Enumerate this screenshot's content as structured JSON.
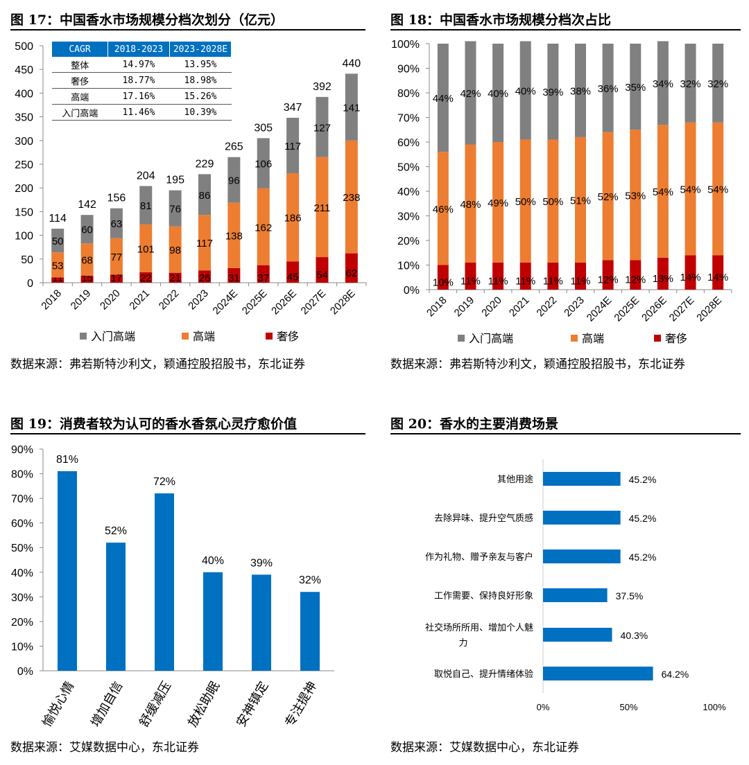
{
  "fig17": {
    "title": "图 17：中国香水市场规模分档次划分（亿元）",
    "source": "数据来源：弗若斯特沙利文，颖通控股招股书，东北证券",
    "table": {
      "headers": [
        "CAGR",
        "2018-2023",
        "2023-2028E"
      ],
      "rows": [
        [
          "整体",
          "14.97%",
          "13.95%"
        ],
        [
          "奢侈",
          "18.77%",
          "18.98%"
        ],
        [
          "高端",
          "17.16%",
          "15.26%"
        ],
        [
          "入门高端",
          "11.46%",
          "10.39%"
        ]
      ]
    }
  },
  "fig18": {
    "title": "图 18：中国香水市场规模分档次占比",
    "source": "数据来源：弗若斯特沙利文，颖通控股招股书，东北证券"
  },
  "fig19": {
    "title": "图 19：消费者较为认可的香水香氛心灵疗愈价值",
    "source": "数据来源：艾媒数据中心，东北证券"
  },
  "fig20": {
    "title": "图 20：香水的主要消费场景",
    "source": "数据来源：艾媒数据中心，东北证券"
  },
  "colors": {
    "entry": "#808080",
    "premium": "#ED7D31",
    "luxury": "#C00000",
    "blue": "#0070C0"
  },
  "chart_data": [
    {
      "type": "bar",
      "stacked": true,
      "categories": [
        "2018",
        "2019",
        "2020",
        "2021",
        "2022",
        "2023",
        "2024E",
        "2025E",
        "2026E",
        "2027E",
        "2028E"
      ],
      "series": [
        {
          "name": "奢侈",
          "values": [
            11,
            15,
            17,
            22,
            21,
            26,
            31,
            37,
            45,
            54,
            62
          ],
          "labels": [
            "11",
            "15",
            "17",
            "22",
            "21",
            "26",
            "31",
            "37",
            "45",
            "54",
            "62"
          ]
        },
        {
          "name": "高端",
          "values": [
            53,
            68,
            77,
            101,
            98,
            117,
            138,
            162,
            186,
            211,
            238
          ],
          "labels": [
            "53",
            "68",
            "77",
            "101",
            "98",
            "117",
            "138",
            "162",
            "186",
            "211",
            "238"
          ]
        },
        {
          "name": "入门高端",
          "values": [
            50,
            60,
            63,
            81,
            76,
            86,
            96,
            106,
            117,
            127,
            141
          ],
          "labels": [
            "50",
            "60",
            "63",
            "81",
            "76",
            "86",
            "96",
            "106",
            "117",
            "127",
            "141"
          ]
        }
      ],
      "totals": [
        "114",
        "142",
        "156",
        "204",
        "195",
        "229",
        "265",
        "305",
        "347",
        "392",
        "440"
      ],
      "ylim": [
        0,
        500
      ],
      "yticks": [
        "0",
        "50",
        "100",
        "150",
        "200",
        "250",
        "300",
        "350",
        "400",
        "450",
        "500"
      ],
      "legend": [
        "入门高端",
        "高端",
        "奢侈"
      ],
      "legend_position": "bottom",
      "grid": false
    },
    {
      "type": "bar",
      "stacked": true,
      "percent": true,
      "categories": [
        "2018",
        "2019",
        "2020",
        "2021",
        "2022",
        "2023",
        "2024E",
        "2025E",
        "2026E",
        "2027E",
        "2028E"
      ],
      "series": [
        {
          "name": "奢侈",
          "values": [
            10,
            11,
            11,
            11,
            11,
            11,
            12,
            12,
            13,
            14,
            14
          ],
          "labels": [
            "10%",
            "11%",
            "11%",
            "11%",
            "11%",
            "11%",
            "12%",
            "12%",
            "13%",
            "14%",
            "14%"
          ]
        },
        {
          "name": "高端",
          "values": [
            46,
            48,
            49,
            50,
            50,
            51,
            52,
            53,
            54,
            54,
            54
          ],
          "labels": [
            "46%",
            "48%",
            "49%",
            "50%",
            "50%",
            "51%",
            "52%",
            "53%",
            "54%",
            "54%",
            "54%"
          ]
        },
        {
          "name": "入门高端",
          "values": [
            44,
            42,
            40,
            40,
            39,
            38,
            36,
            35,
            34,
            32,
            32
          ],
          "labels": [
            "44%",
            "42%",
            "40%",
            "40%",
            "39%",
            "38%",
            "36%",
            "35%",
            "34%",
            "32%",
            "32%"
          ]
        }
      ],
      "ylim": [
        0,
        100
      ],
      "yticks": [
        "0%",
        "10%",
        "20%",
        "30%",
        "40%",
        "50%",
        "60%",
        "70%",
        "80%",
        "90%",
        "100%"
      ],
      "legend": [
        "入门高端",
        "高端",
        "奢侈"
      ],
      "legend_position": "bottom",
      "grid": false
    },
    {
      "type": "bar",
      "categories": [
        "愉悦心情",
        "增加自信",
        "舒缓减压",
        "放松助眠",
        "安神镇定",
        "专注提神"
      ],
      "values": [
        81,
        52,
        72,
        40,
        39,
        32
      ],
      "labels": [
        "81%",
        "52%",
        "72%",
        "40%",
        "39%",
        "32%"
      ],
      "ylim": [
        0,
        90
      ],
      "yticks": [
        "0%",
        "10%",
        "20%",
        "30%",
        "40%",
        "50%",
        "60%",
        "70%",
        "80%",
        "90%"
      ],
      "grid": false
    },
    {
      "type": "bar",
      "orientation": "horizontal",
      "categories": [
        "其他用途",
        "去除异味、提升空气质感",
        "作为礼物、赠予亲友与客户",
        "工作需要、保持良好形象",
        "社交场所所用、增加个人魅力",
        "取悦自己、提升情绪体验"
      ],
      "values": [
        45.2,
        45.2,
        45.2,
        37.5,
        40.3,
        64.2
      ],
      "labels": [
        "45.2%",
        "45.2%",
        "45.2%",
        "37.5%",
        "40.3%",
        "64.2%"
      ],
      "xlim": [
        0,
        100
      ],
      "xticks": [
        "0%",
        "50%",
        "100%"
      ],
      "grid": false
    }
  ]
}
